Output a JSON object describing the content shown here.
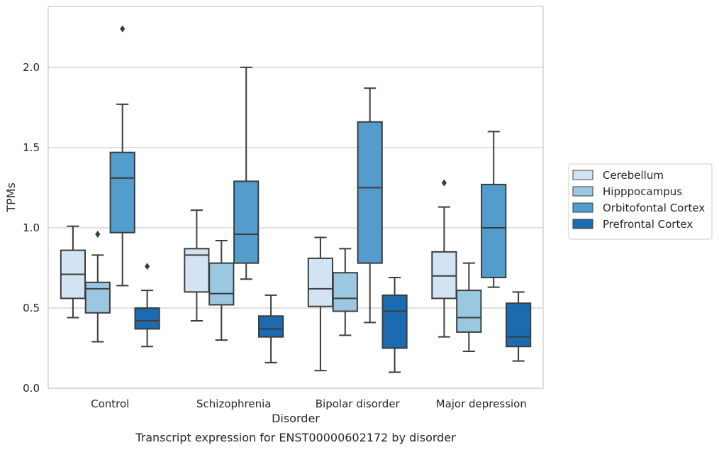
{
  "chart_data": {
    "type": "box",
    "title": "",
    "caption": "Transcript expression for ENST00000602172 by disorder",
    "xlabel": "Disorder",
    "ylabel": "TPMs",
    "ylim": [
      0,
      2.38
    ],
    "yticks": [
      "0.0",
      "0.5",
      "1.0",
      "1.5",
      "2.0"
    ],
    "ytick_values": [
      0,
      0.5,
      1.0,
      1.5,
      2.0
    ],
    "grid": "horizontal",
    "legend_position": "right",
    "categories": [
      "Control",
      "Schizophrenia",
      "Bipolar disorder",
      "Major depression"
    ],
    "series": [
      {
        "name": "Cerebellum",
        "color": "#d2e3f3",
        "boxes": [
          {
            "whislo": 0.44,
            "q1": 0.56,
            "med": 0.71,
            "q3": 0.86,
            "whishi": 1.01,
            "fliers": []
          },
          {
            "whislo": 0.42,
            "q1": 0.6,
            "med": 0.83,
            "q3": 0.87,
            "whishi": 1.11,
            "fliers": []
          },
          {
            "whislo": 0.11,
            "q1": 0.51,
            "med": 0.62,
            "q3": 0.81,
            "whishi": 0.94,
            "fliers": []
          },
          {
            "whislo": 0.32,
            "q1": 0.56,
            "med": 0.7,
            "q3": 0.85,
            "whishi": 1.13,
            "fliers": [
              1.28
            ]
          }
        ]
      },
      {
        "name": "Hipppocampus",
        "color": "#9ac8e0",
        "boxes": [
          {
            "whislo": 0.29,
            "q1": 0.47,
            "med": 0.62,
            "q3": 0.66,
            "whishi": 0.83,
            "fliers": [
              0.96
            ]
          },
          {
            "whislo": 0.3,
            "q1": 0.52,
            "med": 0.59,
            "q3": 0.78,
            "whishi": 0.92,
            "fliers": []
          },
          {
            "whislo": 0.33,
            "q1": 0.48,
            "med": 0.56,
            "q3": 0.72,
            "whishi": 0.87,
            "fliers": []
          },
          {
            "whislo": 0.23,
            "q1": 0.35,
            "med": 0.44,
            "q3": 0.61,
            "whishi": 0.78,
            "fliers": []
          }
        ]
      },
      {
        "name": "Orbitofontal Cortex",
        "color": "#529dcc",
        "boxes": [
          {
            "whislo": 0.64,
            "q1": 0.97,
            "med": 1.31,
            "q3": 1.47,
            "whishi": 1.77,
            "fliers": [
              2.24
            ]
          },
          {
            "whislo": 0.68,
            "q1": 0.78,
            "med": 0.96,
            "q3": 1.29,
            "whishi": 2.0,
            "fliers": []
          },
          {
            "whislo": 0.41,
            "q1": 0.78,
            "med": 1.25,
            "q3": 1.66,
            "whishi": 1.87,
            "fliers": []
          },
          {
            "whislo": 0.63,
            "q1": 0.69,
            "med": 1.0,
            "q3": 1.27,
            "whishi": 1.6,
            "fliers": []
          }
        ]
      },
      {
        "name": "Prefrontal Cortex",
        "color": "#1c6aaf",
        "boxes": [
          {
            "whislo": 0.26,
            "q1": 0.37,
            "med": 0.42,
            "q3": 0.5,
            "whishi": 0.61,
            "fliers": [
              0.76
            ]
          },
          {
            "whislo": 0.16,
            "q1": 0.32,
            "med": 0.37,
            "q3": 0.45,
            "whishi": 0.58,
            "fliers": []
          },
          {
            "whislo": 0.1,
            "q1": 0.25,
            "med": 0.48,
            "q3": 0.58,
            "whishi": 0.69,
            "fliers": []
          },
          {
            "whislo": 0.17,
            "q1": 0.26,
            "med": 0.32,
            "q3": 0.53,
            "whishi": 0.6,
            "fliers": []
          }
        ]
      }
    ]
  }
}
